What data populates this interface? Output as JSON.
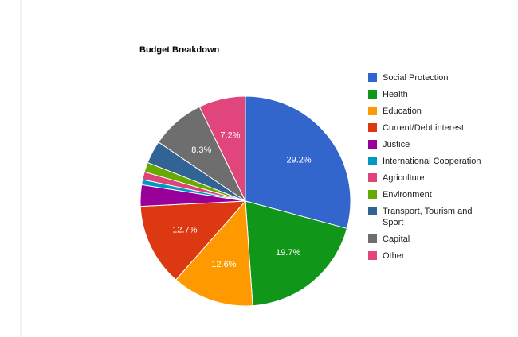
{
  "chart_data": {
    "type": "pie",
    "title": "Budget Breakdown",
    "categories": [
      "Social Protection",
      "Health",
      "Education",
      "Current/Debt interest",
      "Justice",
      "International Cooperation",
      "Agriculture",
      "Environment",
      "Transport, Tourism and Sport",
      "Capital",
      "Other"
    ],
    "values": [
      29.2,
      19.7,
      12.6,
      12.7,
      3.3,
      0.8,
      1.2,
      1.5,
      3.5,
      8.3,
      7.2
    ],
    "value_labels": [
      "29.2%",
      "19.7%",
      "12.6%",
      "12.7%",
      null,
      null,
      null,
      null,
      null,
      "8.3%",
      "7.2%"
    ],
    "colors": [
      "#3366cc",
      "#109618",
      "#ff9900",
      "#dc3912",
      "#990099",
      "#0099c6",
      "#dd4477",
      "#66aa00",
      "#316395",
      "#6e6e6e",
      "#e0457b"
    ],
    "legend": "right"
  }
}
